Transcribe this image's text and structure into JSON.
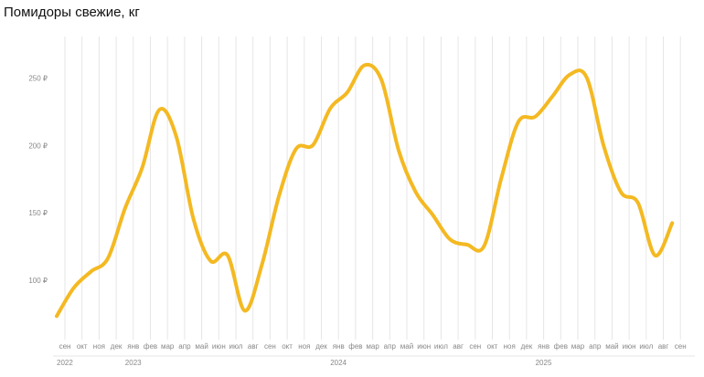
{
  "chart_data": {
    "type": "line",
    "title": "Помидоры свежие, кг",
    "categories": [
      "сен",
      "окт",
      "ноя",
      "дек",
      "янв",
      "фев",
      "мар",
      "апр",
      "май",
      "июн",
      "июл",
      "авг",
      "сен",
      "окт",
      "ноя",
      "дек",
      "янв",
      "фев",
      "мар",
      "апр",
      "май",
      "июн",
      "июл",
      "авг",
      "сен",
      "окт",
      "ноя",
      "дек",
      "янв",
      "фев",
      "мар",
      "апр",
      "май",
      "июн",
      "июл",
      "авг",
      "сен"
    ],
    "year_labels": [
      "2022",
      null,
      null,
      null,
      "2023",
      null,
      null,
      null,
      null,
      null,
      null,
      null,
      null,
      null,
      null,
      null,
      "2024",
      null,
      null,
      null,
      null,
      null,
      null,
      null,
      null,
      null,
      null,
      null,
      "2025",
      null,
      null,
      null,
      null,
      null,
      null,
      null,
      null
    ],
    "values": [
      74,
      95,
      107,
      117,
      154,
      184,
      227,
      207,
      146,
      115,
      119,
      78,
      112,
      163,
      198,
      201,
      228,
      240,
      260,
      249,
      197,
      166,
      149,
      131,
      127,
      126,
      176,
      218,
      222,
      237,
      253,
      251,
      200,
      166,
      158,
      119,
      143
    ],
    "color": "#f4b922",
    "ylim": [
      60,
      280
    ],
    "yticks": [
      {
        "value": 100,
        "label": "100 ₽"
      },
      {
        "value": 150,
        "label": "150 ₽"
      },
      {
        "value": 200,
        "label": "200 ₽"
      },
      {
        "value": 250,
        "label": "250 ₽"
      }
    ],
    "grid": true
  }
}
